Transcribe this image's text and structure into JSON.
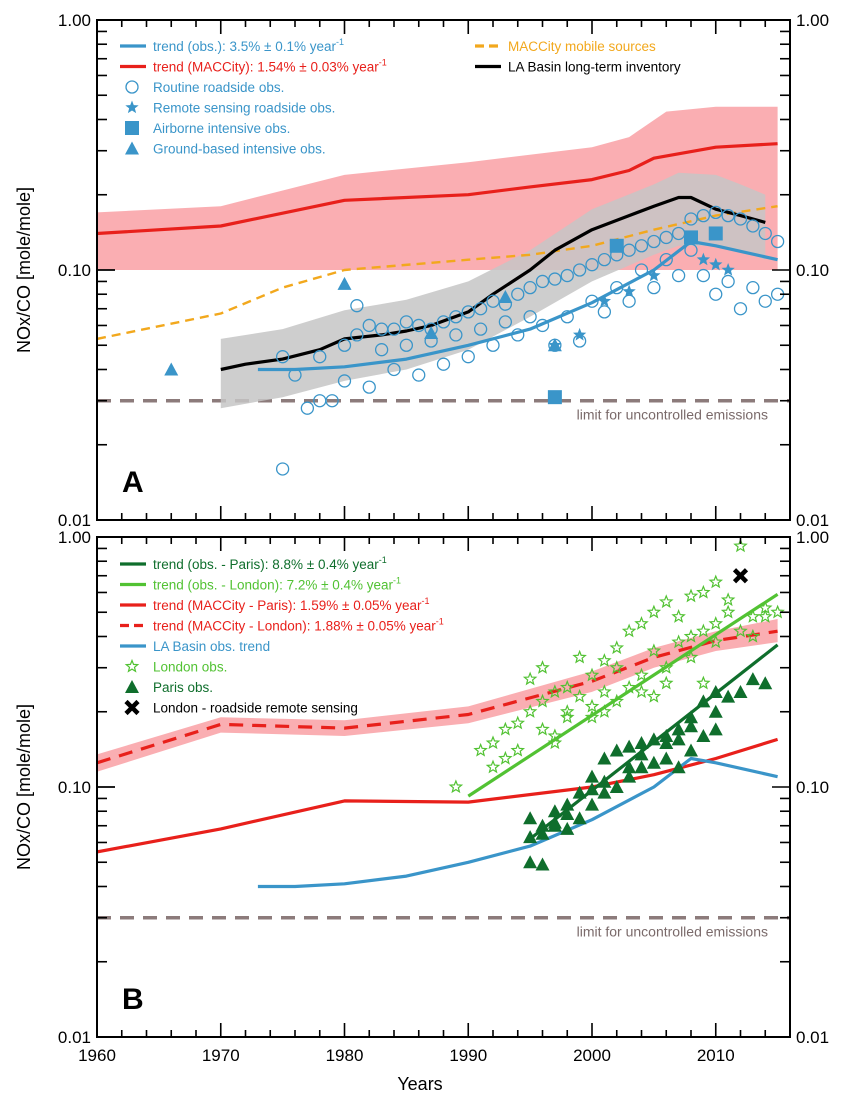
{
  "x_axis": {
    "label": "Years",
    "ticks": [
      "1960",
      "1970",
      "1980",
      "1990",
      "2000",
      "2010"
    ],
    "range": [
      1960,
      2016
    ]
  },
  "colors": {
    "obs_blue": "#3a95c9",
    "maccity_red": "#e8201b",
    "maccity_band": "#f9a0a4",
    "la_black": "#000000",
    "la_band": "#c6c6c6",
    "mobile_orange": "#f2a81d",
    "limit_gray": "#8c7b7b",
    "paris_dark_green": "#0f6e2c",
    "london_light_green": "#52c233"
  },
  "chart_data": [
    {
      "panel": "A",
      "type": "scatter",
      "ylabel": "NOx/CO [mole/mole]",
      "yscale": "log",
      "ylim": [
        0.01,
        1.0
      ],
      "y_ticks": [
        "0.01",
        "0.10",
        "1.00"
      ],
      "limit": {
        "y": 0.03,
        "label": "limit for uncontrolled emissions"
      },
      "legend": [
        {
          "text": "trend (obs.): 3.5% ± 0.1% year",
          "sup": "-1",
          "marker": "line",
          "color": "#3a95c9"
        },
        {
          "text": "trend (MACCity): 1.54% ± 0.03% year",
          "sup": "-1",
          "marker": "line",
          "color": "#e8201b"
        },
        {
          "text": "Routine roadside obs.",
          "marker": "circle",
          "color": "#3a95c9"
        },
        {
          "text": "Remote sensing roadside obs.",
          "marker": "star",
          "color": "#3a95c9"
        },
        {
          "text": "Airborne intensive obs.",
          "marker": "square",
          "color": "#3a95c9"
        },
        {
          "text": "Ground-based intensive obs.",
          "marker": "triangle",
          "color": "#3a95c9"
        },
        {
          "text": "MACCity mobile sources",
          "marker": "dashed",
          "color": "#f2a81d"
        },
        {
          "text": "LA Basin long-term inventory",
          "marker": "line",
          "color": "#000000"
        }
      ],
      "series": [
        {
          "name": "MACCity band",
          "kind": "band",
          "color": "#f9a0a4",
          "x": [
            1960,
            1970,
            1980,
            1990,
            2000,
            2003,
            2006,
            2010,
            2015
          ],
          "lo": [
            0.1,
            0.1,
            0.1,
            0.1,
            0.1,
            0.1,
            0.1,
            0.1,
            0.1
          ],
          "hi": [
            0.17,
            0.18,
            0.24,
            0.27,
            0.31,
            0.34,
            0.43,
            0.45,
            0.45
          ]
        },
        {
          "name": "trend (MACCity)",
          "kind": "line",
          "color": "#e8201b",
          "x": [
            1960,
            1970,
            1980,
            1990,
            1995,
            2000,
            2003,
            2005,
            2010,
            2015
          ],
          "y": [
            0.14,
            0.15,
            0.19,
            0.2,
            0.215,
            0.23,
            0.25,
            0.28,
            0.31,
            0.32
          ]
        },
        {
          "name": "LA Basin band",
          "kind": "band",
          "color": "#c6c6c6",
          "x": [
            1970,
            1975,
            1980,
            1985,
            1990,
            1995,
            2000,
            2005,
            2007,
            2010,
            2012,
            2014
          ],
          "lo": [
            0.028,
            0.031,
            0.036,
            0.04,
            0.048,
            0.065,
            0.09,
            0.115,
            0.125,
            0.125,
            0.12,
            0.11
          ],
          "hi": [
            0.053,
            0.058,
            0.069,
            0.076,
            0.09,
            0.12,
            0.175,
            0.22,
            0.245,
            0.24,
            0.22,
            0.2
          ]
        },
        {
          "name": "MACCity mobile sources",
          "kind": "dashed",
          "color": "#f2a81d",
          "x": [
            1960,
            1970,
            1975,
            1980,
            1990,
            1995,
            2000,
            2005,
            2010,
            2015
          ],
          "y": [
            0.053,
            0.067,
            0.085,
            0.1,
            0.11,
            0.115,
            0.125,
            0.145,
            0.165,
            0.18
          ]
        },
        {
          "name": "LA Basin long-term inventory",
          "kind": "line",
          "color": "#000000",
          "x": [
            1970,
            1972,
            1975,
            1978,
            1980,
            1983,
            1985,
            1987,
            1990,
            1992,
            1995,
            1997,
            2000,
            2003,
            2005,
            2007,
            2008,
            2010,
            2012,
            2014
          ],
          "y": [
            0.04,
            0.042,
            0.044,
            0.048,
            0.053,
            0.055,
            0.057,
            0.06,
            0.068,
            0.08,
            0.1,
            0.12,
            0.145,
            0.165,
            0.18,
            0.195,
            0.195,
            0.175,
            0.165,
            0.155
          ]
        },
        {
          "name": "trend (obs.)",
          "kind": "line",
          "color": "#3a95c9",
          "x": [
            1973,
            1976,
            1980,
            1985,
            1990,
            1995,
            2000,
            2005,
            2008,
            2010,
            2015
          ],
          "y": [
            0.04,
            0.04,
            0.041,
            0.044,
            0.05,
            0.058,
            0.074,
            0.1,
            0.13,
            0.125,
            0.11
          ]
        },
        {
          "name": "Routine roadside obs.",
          "kind": "circle",
          "color": "#3a95c9",
          "x": [
            1975,
            1976,
            1977,
            1978,
            1979,
            1980,
            1981,
            1982,
            1983,
            1984,
            1985,
            1986,
            1987,
            1988,
            1989,
            1990,
            1991,
            1992,
            1993,
            1994,
            1995,
            1996,
            1997,
            1998,
            1999,
            2000,
            2001,
            2002,
            2003,
            2004,
            2005,
            2006,
            2007,
            2008,
            2009,
            2010,
            2011,
            2012,
            2013,
            2014,
            2015,
            1980,
            1982,
            1984,
            1986,
            1988,
            1990,
            1992,
            1994,
            1996,
            1998,
            2000,
            2002,
            2004,
            2006,
            2008,
            2010,
            2012,
            2014,
            1981,
            1983,
            1985,
            1987,
            1989,
            1991,
            1993,
            1995,
            1997,
            1999,
            2001,
            2003,
            2005,
            2007,
            2009,
            2011,
            2013,
            2015,
            1975,
            1978
          ],
          "y": [
            0.045,
            0.038,
            0.028,
            0.03,
            0.03,
            0.05,
            0.072,
            0.06,
            0.058,
            0.058,
            0.062,
            0.06,
            0.058,
            0.062,
            0.065,
            0.068,
            0.07,
            0.075,
            0.073,
            0.08,
            0.085,
            0.09,
            0.092,
            0.095,
            0.1,
            0.105,
            0.11,
            0.115,
            0.12,
            0.125,
            0.13,
            0.135,
            0.14,
            0.16,
            0.165,
            0.17,
            0.165,
            0.16,
            0.15,
            0.14,
            0.13,
            0.036,
            0.034,
            0.04,
            0.038,
            0.042,
            0.045,
            0.05,
            0.055,
            0.06,
            0.065,
            0.075,
            0.085,
            0.1,
            0.11,
            0.12,
            0.08,
            0.07,
            0.075,
            0.055,
            0.048,
            0.05,
            0.052,
            0.055,
            0.058,
            0.062,
            0.065,
            0.05,
            0.052,
            0.068,
            0.075,
            0.085,
            0.095,
            0.095,
            0.09,
            0.085,
            0.08,
            0.016,
            0.045
          ]
        },
        {
          "name": "Remote sensing roadside obs.",
          "kind": "star",
          "color": "#3a95c9",
          "x": [
            1997,
            1999,
            2001,
            2003,
            2005,
            2009,
            2010,
            2011
          ],
          "y": [
            0.05,
            0.055,
            0.075,
            0.082,
            0.095,
            0.11,
            0.105,
            0.1
          ]
        },
        {
          "name": "Airborne intensive obs.",
          "kind": "square",
          "color": "#3a95c9",
          "x": [
            1997,
            2002,
            2008,
            2010
          ],
          "y": [
            0.031,
            0.125,
            0.135,
            0.14
          ]
        },
        {
          "name": "Ground-based intensive obs.",
          "kind": "triangle",
          "color": "#3a95c9",
          "x": [
            1966,
            1980,
            1987,
            1993,
            1997
          ],
          "y": [
            0.04,
            0.088,
            0.056,
            0.078,
            0.05
          ]
        }
      ]
    },
    {
      "panel": "B",
      "type": "scatter",
      "ylabel": "NOx/CO [mole/mole]",
      "yscale": "log",
      "ylim": [
        0.01,
        1.0
      ],
      "y_ticks": [
        "0.01",
        "0.10",
        "1.00"
      ],
      "limit": {
        "y": 0.03,
        "label": "limit for uncontrolled emissions"
      },
      "legend": [
        {
          "text": "trend (obs. - Paris): 8.8% ± 0.4% year",
          "sup": "-1",
          "marker": "line",
          "color": "#0f6e2c"
        },
        {
          "text": "trend (obs. - London): 7.2% ± 0.4% year",
          "sup": "-1",
          "marker": "line",
          "color": "#52c233"
        },
        {
          "text": "trend (MACCity - Paris): 1.59% ± 0.05% year",
          "sup": "-1",
          "marker": "line",
          "color": "#e8201b"
        },
        {
          "text": "trend (MACCity - London): 1.88% ± 0.05% year",
          "sup": "-1",
          "marker": "dashed",
          "color": "#e8201b"
        },
        {
          "text": "LA Basin obs. trend",
          "marker": "line",
          "color": "#3a95c9"
        },
        {
          "text": "London obs.",
          "marker": "star-open",
          "color": "#52c233"
        },
        {
          "text": "Paris obs.",
          "marker": "triangle",
          "color": "#0f6e2c"
        },
        {
          "text": "London - roadside remote sensing",
          "marker": "x",
          "color": "#000000"
        }
      ],
      "series": [
        {
          "name": "MACCity London band",
          "kind": "band",
          "color": "#f9a0a4",
          "x": [
            1960,
            1970,
            1980,
            1990,
            2000,
            2005,
            2010,
            2015
          ],
          "lo": [
            0.115,
            0.165,
            0.16,
            0.18,
            0.24,
            0.3,
            0.35,
            0.38
          ],
          "hi": [
            0.135,
            0.19,
            0.185,
            0.21,
            0.29,
            0.36,
            0.42,
            0.47
          ]
        },
        {
          "name": "trend (MACCity - London)",
          "kind": "dashed",
          "color": "#e8201b",
          "x": [
            1960,
            1970,
            1980,
            1990,
            2000,
            2005,
            2010,
            2015
          ],
          "y": [
            0.125,
            0.178,
            0.172,
            0.195,
            0.265,
            0.33,
            0.385,
            0.42
          ]
        },
        {
          "name": "trend (MACCity - Paris)",
          "kind": "line",
          "color": "#e8201b",
          "x": [
            1960,
            1970,
            1980,
            1990,
            2000,
            2005,
            2010,
            2015
          ],
          "y": [
            0.055,
            0.068,
            0.088,
            0.087,
            0.1,
            0.112,
            0.13,
            0.155
          ]
        },
        {
          "name": "LA Basin obs. trend",
          "kind": "line",
          "color": "#3a95c9",
          "x": [
            1973,
            1976,
            1980,
            1985,
            1990,
            1995,
            2000,
            2005,
            2008,
            2010,
            2015
          ],
          "y": [
            0.04,
            0.04,
            0.041,
            0.044,
            0.05,
            0.058,
            0.074,
            0.1,
            0.13,
            0.125,
            0.11
          ]
        },
        {
          "name": "trend (obs. - London)",
          "kind": "line",
          "color": "#52c233",
          "x": [
            1990,
            2015
          ],
          "y": [
            0.092,
            0.59
          ]
        },
        {
          "name": "trend (obs. - Paris)",
          "kind": "line",
          "color": "#0f6e2c",
          "x": [
            1995,
            2015
          ],
          "y": [
            0.062,
            0.37
          ]
        },
        {
          "name": "London obs.",
          "kind": "star-open",
          "color": "#52c233",
          "x": [
            1989,
            1991,
            1992,
            1993,
            1994,
            1995,
            1995,
            1996,
            1996,
            1997,
            1997,
            1998,
            1998,
            1999,
            1999,
            2000,
            2000,
            2001,
            2001,
            2002,
            2002,
            2003,
            2003,
            2004,
            2004,
            2005,
            2005,
            2006,
            2006,
            2007,
            2007,
            2008,
            2008,
            2009,
            2009,
            2010,
            2010,
            2011,
            2011,
            2012,
            2013,
            2014,
            2015,
            1992,
            1994,
            1996,
            1998,
            2000,
            2002,
            2004,
            2006,
            2008,
            2010,
            2012,
            2014,
            1993,
            1997,
            2001,
            2005,
            2009,
            2013
          ],
          "y": [
            0.1,
            0.14,
            0.15,
            0.17,
            0.18,
            0.2,
            0.27,
            0.22,
            0.3,
            0.16,
            0.24,
            0.25,
            0.19,
            0.23,
            0.33,
            0.21,
            0.28,
            0.24,
            0.32,
            0.3,
            0.36,
            0.25,
            0.42,
            0.28,
            0.45,
            0.35,
            0.5,
            0.3,
            0.55,
            0.38,
            0.48,
            0.4,
            0.58,
            0.42,
            0.6,
            0.45,
            0.66,
            0.5,
            0.56,
            0.92,
            0.48,
            0.52,
            0.5,
            0.12,
            0.14,
            0.17,
            0.2,
            0.19,
            0.22,
            0.24,
            0.26,
            0.33,
            0.38,
            0.42,
            0.48,
            0.13,
            0.15,
            0.2,
            0.23,
            0.26,
            0.4
          ]
        },
        {
          "name": "Paris obs.",
          "kind": "triangle",
          "color": "#0f6e2c",
          "x": [
            1995,
            1995,
            1996,
            1996,
            1997,
            1997,
            1998,
            1998,
            1999,
            1999,
            2000,
            2000,
            2001,
            2001,
            2002,
            2002,
            2003,
            2003,
            2004,
            2004,
            2005,
            2005,
            2006,
            2006,
            2007,
            2007,
            2008,
            2008,
            2009,
            2009,
            2010,
            2010,
            2011,
            2012,
            2013,
            2014,
            1995,
            1996,
            1997,
            1998,
            2000,
            2001,
            2003,
            2004,
            2006,
            2007,
            2008,
            2010
          ],
          "y": [
            0.05,
            0.075,
            0.049,
            0.065,
            0.07,
            0.08,
            0.068,
            0.085,
            0.075,
            0.095,
            0.085,
            0.11,
            0.095,
            0.13,
            0.1,
            0.14,
            0.11,
            0.145,
            0.12,
            0.15,
            0.125,
            0.155,
            0.13,
            0.16,
            0.12,
            0.17,
            0.14,
            0.19,
            0.16,
            0.22,
            0.17,
            0.24,
            0.23,
            0.24,
            0.27,
            0.26,
            0.063,
            0.07,
            0.072,
            0.078,
            0.098,
            0.105,
            0.12,
            0.135,
            0.15,
            0.155,
            0.175,
            0.2
          ]
        },
        {
          "name": "London - roadside remote sensing",
          "kind": "x",
          "color": "#000000",
          "x": [
            2012
          ],
          "y": [
            0.7
          ]
        }
      ]
    }
  ]
}
